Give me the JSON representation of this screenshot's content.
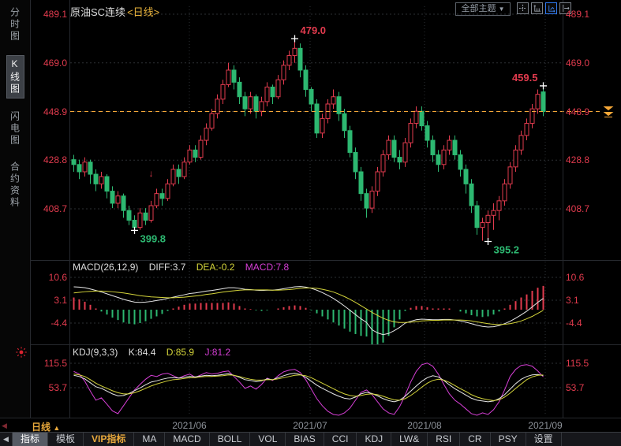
{
  "window": {
    "title_symbol": "原油SC连续",
    "title_period": "<日线>"
  },
  "colors": {
    "up": "#e23b4e",
    "down": "#2db871",
    "price_line": "#f7a838",
    "diff_line": "#e6e6e6",
    "dea_line": "#d4d43a",
    "k_line": "#e6e6e6",
    "d_line": "#d4d43a",
    "j_line": "#d63fd6",
    "axis_text": "#e23b4e",
    "grid": "#2c2f34",
    "cross": "#ffffff"
  },
  "sidebar": {
    "items": [
      {
        "id": "time-chart",
        "label": "分时图",
        "selected": false
      },
      {
        "id": "k-line-chart",
        "label": "K线图",
        "selected": true
      },
      {
        "id": "lightning-chart",
        "label": "闪电图",
        "selected": false
      },
      {
        "id": "contract-info",
        "label": "合约资料",
        "selected": false
      }
    ]
  },
  "header": {
    "theme_label": "全部主题",
    "theme_caret": "▼",
    "icons": [
      "pan-icon",
      "y-axis-expand-icon",
      "y-axis-scale-icon",
      "x-axis-shift-icon"
    ],
    "active_icon": "y-axis-scale-icon"
  },
  "main_panel": {
    "axis_labels": [
      "489.1",
      "469.0",
      "448.9",
      "428.8",
      "408.7"
    ],
    "last_price_label": "448.9"
  },
  "macd": {
    "header": {
      "name": "MACD(26,12,9)",
      "diff": "DIFF:3.7",
      "dea": "DEA:-0.2",
      "macd": "MACD:7.8"
    },
    "axis_labels": [
      "10.6",
      "3.1",
      "-4.4"
    ]
  },
  "kdj": {
    "header": {
      "name": "KDJ(9,3,3)",
      "k": "K:84.4",
      "d": "D:85.9",
      "j": "J:81.2"
    },
    "axis_labels": [
      "115.5",
      "53.7"
    ]
  },
  "xaxis": {
    "scroll_left": "◀",
    "period_label": "日线",
    "period_caret": "▲",
    "dates": [
      "2021/06",
      "2021/07",
      "2021/08",
      "2021/09"
    ]
  },
  "toolbar": {
    "scroll_left": "◀",
    "items": [
      {
        "id": "indicator",
        "label": "指标",
        "selected": true
      },
      {
        "id": "template",
        "label": "模板"
      },
      {
        "id": "vip-indicator",
        "label": "VIP指标",
        "vip": true
      },
      {
        "id": "ma",
        "label": "MA"
      },
      {
        "id": "macd",
        "label": "MACD"
      },
      {
        "id": "boll",
        "label": "BOLL"
      },
      {
        "id": "vol",
        "label": "VOL"
      },
      {
        "id": "bias",
        "label": "BIAS"
      },
      {
        "id": "cci",
        "label": "CCI"
      },
      {
        "id": "kdj",
        "label": "KDJ"
      },
      {
        "id": "lwr",
        "label": "LW&"
      },
      {
        "id": "rsi",
        "label": "RSI"
      },
      {
        "id": "cr",
        "label": "CR"
      },
      {
        "id": "psy",
        "label": "PSY"
      },
      {
        "id": "settings",
        "label": "设置"
      }
    ]
  },
  "chart_data": [
    {
      "type": "candlestick",
      "title": "原油SC连续 日线",
      "axis_ticks": [
        489.1,
        469.0,
        448.9,
        428.8,
        408.7
      ],
      "last_price": 448.9,
      "x_dates": [
        "2021/06",
        "2021/07",
        "2021/08",
        "2021/09"
      ],
      "legend_position": "none",
      "grid": true,
      "candles": [
        [
          429,
          431,
          424,
          427
        ],
        [
          427,
          429,
          421,
          424
        ],
        [
          424,
          430,
          422,
          428
        ],
        [
          428,
          429,
          419,
          423
        ],
        [
          423,
          425,
          416,
          419
        ],
        [
          419,
          424,
          417,
          422
        ],
        [
          422,
          423,
          413,
          416
        ],
        [
          416,
          418,
          409,
          411
        ],
        [
          411,
          416,
          409,
          414
        ],
        [
          414,
          415,
          405,
          408
        ],
        [
          408,
          410,
          402,
          404
        ],
        [
          404,
          406,
          399.8,
          401
        ],
        [
          401,
          409,
          400,
          407
        ],
        [
          407,
          409,
          402,
          404
        ],
        [
          404,
          412,
          403,
          410
        ],
        [
          410,
          417,
          409,
          415
        ],
        [
          415,
          417,
          410,
          413
        ],
        [
          413,
          421,
          412,
          419
        ],
        [
          419,
          427,
          418,
          425
        ],
        [
          425,
          427,
          419,
          422
        ],
        [
          422,
          430,
          421,
          428
        ],
        [
          428,
          435,
          427,
          433
        ],
        [
          433,
          435,
          428,
          430
        ],
        [
          430,
          439,
          429,
          437
        ],
        [
          437,
          444,
          435,
          442
        ],
        [
          442,
          450,
          441,
          448
        ],
        [
          448,
          456,
          446,
          454
        ],
        [
          454,
          462,
          452,
          460
        ],
        [
          460,
          469,
          459,
          466
        ],
        [
          466,
          468,
          458,
          461
        ],
        [
          461,
          463,
          452,
          455
        ],
        [
          455,
          457,
          447,
          450
        ],
        [
          450,
          457,
          448,
          455
        ],
        [
          455,
          456,
          446,
          449
        ],
        [
          449,
          455,
          447,
          453
        ],
        [
          453,
          461,
          451,
          459
        ],
        [
          459,
          460,
          452,
          455
        ],
        [
          455,
          464,
          454,
          462
        ],
        [
          462,
          470,
          460,
          468
        ],
        [
          468,
          474,
          466,
          472
        ],
        [
          472,
          479.0,
          469,
          475
        ],
        [
          475,
          477,
          463,
          466
        ],
        [
          466,
          468,
          455,
          458
        ],
        [
          458,
          459,
          449,
          452
        ],
        [
          452,
          454,
          438,
          440
        ],
        [
          440,
          448,
          438,
          446
        ],
        [
          446,
          454,
          444,
          452
        ],
        [
          452,
          458,
          450,
          455
        ],
        [
          455,
          457,
          445,
          448
        ],
        [
          448,
          450,
          438,
          441
        ],
        [
          441,
          443,
          430,
          432
        ],
        [
          432,
          434,
          421,
          424
        ],
        [
          424,
          426,
          412,
          415
        ],
        [
          415,
          417,
          405,
          409
        ],
        [
          409,
          418,
          407,
          416
        ],
        [
          416,
          426,
          414,
          424
        ],
        [
          424,
          433,
          422,
          431
        ],
        [
          431,
          439,
          429,
          437
        ],
        [
          437,
          439,
          428,
          430
        ],
        [
          430,
          433,
          425,
          428
        ],
        [
          428,
          438,
          426,
          436
        ],
        [
          436,
          446,
          434,
          444
        ],
        [
          444,
          451,
          442,
          449
        ],
        [
          449,
          451,
          441,
          443
        ],
        [
          443,
          445,
          434,
          437
        ],
        [
          437,
          439,
          428,
          431
        ],
        [
          431,
          433,
          424,
          427
        ],
        [
          427,
          435,
          425,
          433
        ],
        [
          433,
          439,
          431,
          437
        ],
        [
          437,
          439,
          429,
          431
        ],
        [
          431,
          433,
          422,
          425
        ],
        [
          425,
          427,
          415,
          419
        ],
        [
          419,
          421,
          407,
          410
        ],
        [
          410,
          412,
          398,
          401
        ],
        [
          401,
          405,
          395.5,
          403
        ],
        [
          403,
          408,
          395.2,
          406
        ],
        [
          406,
          411,
          400,
          408
        ],
        [
          408,
          414,
          404,
          412
        ],
        [
          412,
          421,
          410,
          419
        ],
        [
          419,
          428,
          417,
          426
        ],
        [
          426,
          435,
          424,
          433
        ],
        [
          433,
          441,
          431,
          439
        ],
        [
          439,
          446,
          437,
          444
        ],
        [
          444,
          452,
          442,
          450
        ],
        [
          450,
          458,
          448,
          456
        ],
        [
          457,
          459.5,
          447,
          448.9
        ]
      ],
      "annotations": [
        {
          "index": 11,
          "value": 399.8,
          "text": "399.8",
          "kind": "low",
          "color": "#2db871"
        },
        {
          "index": 40,
          "value": 479.0,
          "text": "479.0",
          "kind": "high",
          "color": "#e23b4e"
        },
        {
          "index": 75,
          "value": 395.2,
          "text": "395.2",
          "kind": "low",
          "color": "#2db871"
        },
        {
          "index": 85,
          "value": 459.5,
          "text": "459.5",
          "kind": "high",
          "color": "#e23b4e"
        },
        {
          "index": 14,
          "value": 422,
          "text": "↓",
          "kind": "marker",
          "color": "#e23b4e"
        }
      ]
    },
    {
      "type": "bar",
      "title": "MACD(26,12,9)",
      "axis_ticks": [
        10.6,
        3.1,
        -4.4
      ],
      "current": {
        "diff": 3.7,
        "dea": -0.2,
        "macd": 7.8
      },
      "note": "histogram = 2*(diff-dea); red above 0, green below 0",
      "series": [
        {
          "name": "DIFF",
          "values": [
            7.5,
            7.4,
            7.2,
            6.8,
            6.3,
            5.8,
            5.2,
            4.6,
            4.0,
            3.4,
            2.9,
            2.5,
            2.4,
            2.5,
            2.7,
            3.0,
            3.3,
            3.7,
            4.1,
            4.5,
            4.9,
            5.3,
            5.5,
            5.8,
            6.1,
            6.3,
            6.6,
            6.9,
            7.2,
            7.2,
            7.0,
            6.7,
            6.6,
            6.4,
            6.3,
            6.4,
            6.4,
            6.6,
            6.9,
            7.2,
            7.5,
            7.6,
            7.4,
            7.0,
            6.4,
            5.6,
            4.7,
            3.7,
            2.5,
            1.2,
            -0.2,
            -1.6,
            -3.0,
            -4.2,
            -6.6,
            -7.6,
            -8.2,
            -7.8,
            -6.9,
            -5.8,
            -4.4,
            -3.8,
            -3.3,
            -3.1,
            -3.2,
            -3.3,
            -3.3,
            -3.2,
            -3.2,
            -3.4,
            -3.7,
            -4.1,
            -4.6,
            -5.1,
            -5.5,
            -5.7,
            -5.6,
            -5.2,
            -4.6,
            -3.8,
            -2.8,
            -1.7,
            -0.5,
            0.9,
            2.4,
            3.7
          ]
        },
        {
          "name": "DEA",
          "values": [
            5.5,
            5.7,
            5.9,
            6.0,
            6.1,
            6.1,
            6.0,
            5.9,
            5.7,
            5.5,
            5.2,
            4.9,
            4.6,
            4.4,
            4.2,
            4.1,
            4.0,
            3.9,
            3.9,
            4.0,
            4.1,
            4.3,
            4.5,
            4.7,
            5.0,
            5.2,
            5.5,
            5.8,
            6.0,
            6.2,
            6.4,
            6.5,
            6.5,
            6.5,
            6.5,
            6.5,
            6.4,
            6.4,
            6.5,
            6.6,
            6.8,
            7.0,
            7.1,
            7.1,
            7.0,
            6.7,
            6.3,
            5.8,
            5.1,
            4.3,
            3.4,
            2.4,
            1.3,
            0.2,
            -0.9,
            -1.9,
            -2.8,
            -3.5,
            -4.0,
            -4.2,
            -4.2,
            -4.1,
            -3.9,
            -3.7,
            -3.6,
            -3.5,
            -3.5,
            -3.4,
            -3.4,
            -3.4,
            -3.4,
            -3.5,
            -3.7,
            -4.0,
            -4.3,
            -4.6,
            -4.8,
            -4.9,
            -4.8,
            -4.6,
            -4.2,
            -3.7,
            -3.0,
            -2.2,
            -1.2,
            -0.2
          ]
        }
      ]
    },
    {
      "type": "line",
      "title": "KDJ(9,3,3)",
      "axis_ticks": [
        115.5,
        53.7
      ],
      "current": {
        "k": 84.4,
        "d": 85.9,
        "j": 81.2
      },
      "series": [
        {
          "name": "K",
          "values": [
            85,
            82,
            76,
            66,
            56,
            52,
            45,
            38,
            33,
            34,
            39,
            46,
            53,
            61,
            68,
            71,
            75,
            78,
            79,
            78,
            80,
            82,
            81,
            83,
            85,
            84,
            85,
            87,
            89,
            85,
            80,
            74,
            72,
            69,
            71,
            76,
            74,
            79,
            84,
            88,
            90,
            87,
            80,
            70,
            60,
            52,
            45,
            38,
            32,
            27,
            25,
            30,
            38,
            42,
            39,
            33,
            26,
            21,
            18,
            22,
            32,
            45,
            58,
            70,
            79,
            84,
            81,
            72,
            61,
            51,
            43,
            35,
            27,
            22,
            20,
            18,
            20,
            26,
            36,
            50,
            64,
            75,
            82,
            86,
            87,
            84.4
          ]
        },
        {
          "name": "D",
          "values": [
            88,
            86,
            82,
            74,
            65,
            58,
            52,
            46,
            41,
            38,
            38,
            41,
            46,
            52,
            58,
            63,
            67,
            71,
            74,
            75,
            77,
            79,
            79,
            81,
            82,
            82,
            83,
            84,
            86,
            85,
            82,
            78,
            75,
            73,
            73,
            74,
            74,
            76,
            79,
            82,
            85,
            86,
            84,
            79,
            72,
            65,
            58,
            51,
            44,
            38,
            34,
            32,
            34,
            37,
            38,
            36,
            32,
            27,
            23,
            22,
            26,
            34,
            44,
            55,
            65,
            72,
            75,
            73,
            67,
            59,
            51,
            44,
            36,
            30,
            26,
            23,
            21,
            23,
            30,
            40,
            52,
            63,
            74,
            81,
            85,
            85.9
          ]
        },
        {
          "name": "J",
          "values": [
            95,
            88,
            70,
            45,
            22,
            28,
            12,
            -5,
            -12,
            8,
            28,
            48,
            62,
            75,
            85,
            82,
            88,
            90,
            84,
            78,
            84,
            88,
            80,
            86,
            92,
            88,
            90,
            94,
            96,
            82,
            68,
            52,
            58,
            50,
            62,
            78,
            72,
            84,
            94,
            98,
            100,
            92,
            74,
            50,
            26,
            8,
            -6,
            -14,
            -16,
            -10,
            2,
            22,
            42,
            48,
            36,
            18,
            0,
            -10,
            -14,
            6,
            35,
            68,
            95,
            112,
            116,
            108,
            88,
            62,
            38,
            22,
            12,
            0,
            -12,
            -16,
            -10,
            -14,
            -2,
            18,
            48,
            82,
            100,
            110,
            112,
            108,
            96,
            81.2
          ]
        }
      ]
    }
  ]
}
